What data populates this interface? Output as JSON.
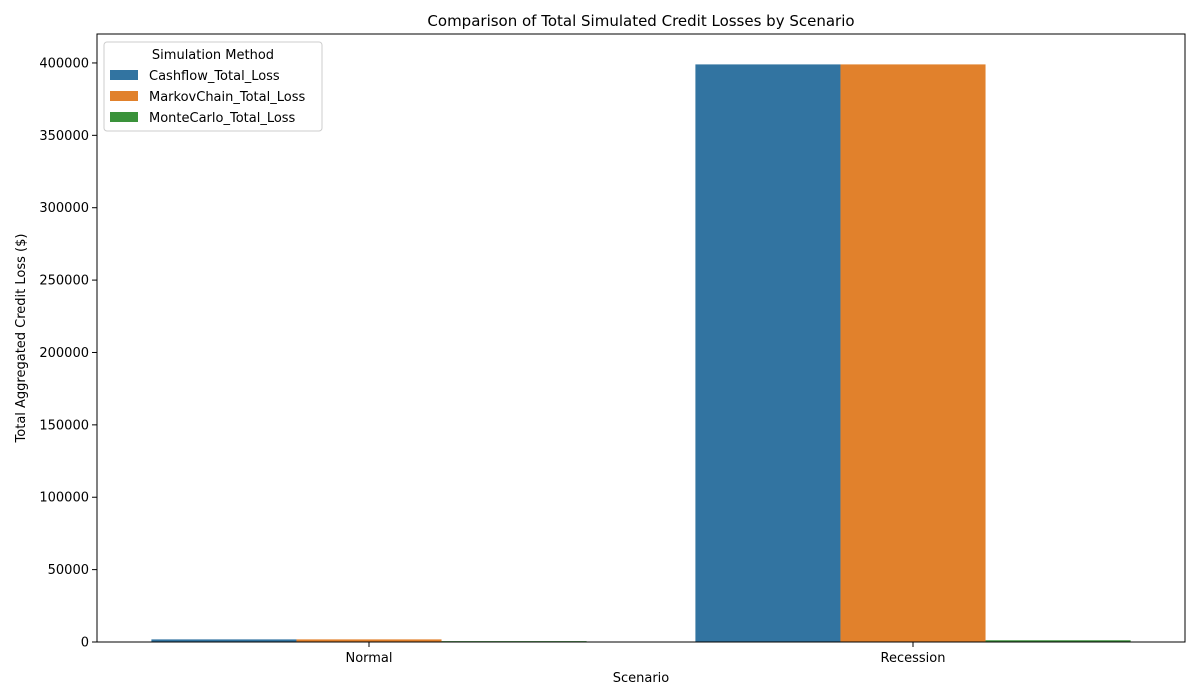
{
  "chart_data": {
    "type": "bar",
    "title": "Comparison of Total Simulated Credit Losses by Scenario",
    "xlabel": "Scenario",
    "ylabel": "Total Aggregated Credit Loss ($)",
    "categories": [
      "Normal",
      "Recession"
    ],
    "series": [
      {
        "name": "Cashflow_Total_Loss",
        "color": "#3274a1",
        "values": [
          1800,
          399000
        ]
      },
      {
        "name": "MarkovChain_Total_Loss",
        "color": "#e1812c",
        "values": [
          1800,
          399000
        ]
      },
      {
        "name": "MonteCarlo_Total_Loss",
        "color": "#3a923a",
        "values": [
          600,
          1200
        ]
      }
    ],
    "ylim": [
      0,
      420000
    ],
    "yticks": [
      0,
      50000,
      100000,
      150000,
      200000,
      250000,
      300000,
      350000,
      400000
    ],
    "legend": {
      "title": "Simulation Method",
      "placement": "top-left"
    },
    "grid": false
  }
}
